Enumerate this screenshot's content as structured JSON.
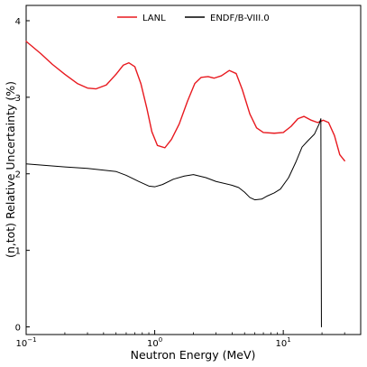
{
  "chart_data": {
    "type": "line",
    "xlabel": "Neutron Energy (MeV)",
    "ylabel": "(n,tot) Relative Uncertainty (%)",
    "xscale": "log",
    "xlim": [
      0.1,
      40
    ],
    "ylim": [
      -0.1,
      4.2
    ],
    "grid": false,
    "legend_position": "top-center",
    "x_ticks": [
      {
        "value": 0.1,
        "base": "10",
        "exp": "−1"
      },
      {
        "value": 1,
        "base": "10",
        "exp": "0"
      },
      {
        "value": 10,
        "base": "10",
        "exp": "1"
      }
    ],
    "y_ticks": [
      {
        "value": 0,
        "label": "0"
      },
      {
        "value": 1,
        "label": "1"
      },
      {
        "value": 2,
        "label": "2"
      },
      {
        "value": 3,
        "label": "3"
      },
      {
        "value": 4,
        "label": "4"
      }
    ],
    "series": [
      {
        "name": "LANL",
        "color": "#e8191f",
        "points": [
          [
            0.1,
            3.73
          ],
          [
            0.13,
            3.57
          ],
          [
            0.16,
            3.43
          ],
          [
            0.2,
            3.3
          ],
          [
            0.25,
            3.18
          ],
          [
            0.3,
            3.12
          ],
          [
            0.35,
            3.11
          ],
          [
            0.42,
            3.16
          ],
          [
            0.5,
            3.3
          ],
          [
            0.57,
            3.42
          ],
          [
            0.63,
            3.45
          ],
          [
            0.7,
            3.4
          ],
          [
            0.78,
            3.18
          ],
          [
            0.87,
            2.85
          ],
          [
            0.95,
            2.55
          ],
          [
            1.05,
            2.37
          ],
          [
            1.2,
            2.34
          ],
          [
            1.35,
            2.45
          ],
          [
            1.55,
            2.65
          ],
          [
            1.8,
            2.95
          ],
          [
            2.05,
            3.18
          ],
          [
            2.3,
            3.26
          ],
          [
            2.6,
            3.27
          ],
          [
            2.9,
            3.25
          ],
          [
            3.3,
            3.28
          ],
          [
            3.8,
            3.35
          ],
          [
            4.3,
            3.31
          ],
          [
            4.8,
            3.1
          ],
          [
            5.5,
            2.78
          ],
          [
            6.2,
            2.6
          ],
          [
            7.0,
            2.54
          ],
          [
            8.5,
            2.53
          ],
          [
            10.0,
            2.54
          ],
          [
            11.5,
            2.62
          ],
          [
            13.0,
            2.72
          ],
          [
            14.5,
            2.75
          ],
          [
            16.5,
            2.7
          ],
          [
            18.5,
            2.67
          ],
          [
            20.5,
            2.7
          ],
          [
            22.5,
            2.67
          ],
          [
            25.0,
            2.5
          ],
          [
            27.5,
            2.25
          ],
          [
            30.0,
            2.17
          ]
        ]
      },
      {
        "name": "ENDF/B-VIII.0",
        "color": "#000000",
        "points": [
          [
            0.1,
            2.13
          ],
          [
            0.2,
            2.09
          ],
          [
            0.3,
            2.07
          ],
          [
            0.5,
            2.03
          ],
          [
            0.6,
            1.98
          ],
          [
            0.75,
            1.9
          ],
          [
            0.9,
            1.84
          ],
          [
            1.0,
            1.83
          ],
          [
            1.15,
            1.86
          ],
          [
            1.4,
            1.93
          ],
          [
            1.7,
            1.97
          ],
          [
            2.0,
            1.99
          ],
          [
            2.5,
            1.95
          ],
          [
            3.0,
            1.9
          ],
          [
            4.0,
            1.85
          ],
          [
            4.5,
            1.82
          ],
          [
            5.0,
            1.76
          ],
          [
            5.5,
            1.69
          ],
          [
            6.0,
            1.66
          ],
          [
            6.8,
            1.67
          ],
          [
            7.5,
            1.71
          ],
          [
            8.5,
            1.75
          ],
          [
            9.5,
            1.8
          ],
          [
            11.0,
            1.95
          ],
          [
            12.5,
            2.15
          ],
          [
            14.0,
            2.35
          ],
          [
            15.5,
            2.43
          ],
          [
            17.5,
            2.52
          ],
          [
            19.0,
            2.65
          ],
          [
            19.6,
            2.72
          ],
          [
            19.8,
            0.0
          ]
        ]
      }
    ]
  }
}
